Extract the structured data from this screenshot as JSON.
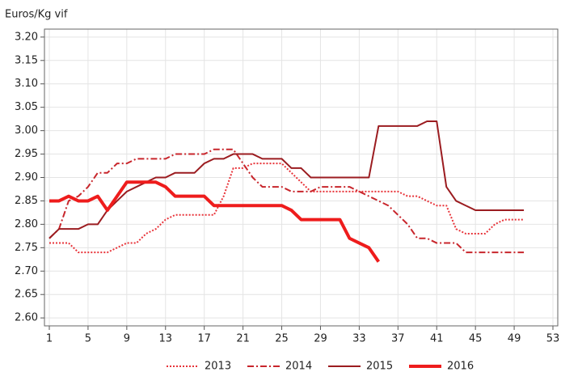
{
  "chart_data": {
    "type": "line",
    "ylabel": "Euros/Kg vif",
    "x": [
      1,
      2,
      3,
      4,
      5,
      6,
      7,
      8,
      9,
      10,
      11,
      12,
      13,
      14,
      15,
      16,
      17,
      18,
      19,
      20,
      21,
      22,
      23,
      24,
      25,
      26,
      27,
      28,
      29,
      30,
      31,
      32,
      33,
      34,
      35,
      36,
      37,
      38,
      39,
      40,
      41,
      42,
      43,
      44,
      45,
      46,
      47,
      48,
      49,
      50
    ],
    "xlim": [
      0.5,
      53.5
    ],
    "xticks": [
      1,
      5,
      9,
      13,
      17,
      21,
      25,
      29,
      33,
      37,
      41,
      45,
      49,
      53
    ],
    "ylim": [
      2.583,
      3.217
    ],
    "yticks": [
      {
        "value": 2.6,
        "label": "2.60"
      },
      {
        "value": 2.65,
        "label": "2.65"
      },
      {
        "value": 2.7,
        "label": "2.70"
      },
      {
        "value": 2.75,
        "label": "2.75"
      },
      {
        "value": 2.8,
        "label": "2.80"
      },
      {
        "value": 2.85,
        "label": "2.85"
      },
      {
        "value": 2.9,
        "label": "2.90"
      },
      {
        "value": 2.95,
        "label": "2.95"
      },
      {
        "value": 3.0,
        "label": "3.00"
      },
      {
        "value": 3.05,
        "label": "3.05"
      },
      {
        "value": 3.1,
        "label": "3.10"
      },
      {
        "value": 3.15,
        "label": "3.15"
      },
      {
        "value": 3.2,
        "label": "3.20"
      }
    ],
    "grid": true,
    "legend": "bottom",
    "series": [
      {
        "name": "2013",
        "color": "#e8343a",
        "line_style": "dotted",
        "values": [
          2.76,
          2.76,
          2.76,
          2.74,
          2.74,
          2.74,
          2.74,
          2.75,
          2.76,
          2.76,
          2.78,
          2.79,
          2.81,
          2.82,
          2.82,
          2.82,
          2.82,
          2.82,
          2.86,
          2.92,
          2.92,
          2.93,
          2.93,
          2.93,
          2.93,
          2.91,
          2.89,
          2.87,
          2.87,
          2.87,
          2.87,
          2.87,
          2.87,
          2.87,
          2.87,
          2.87,
          2.87,
          2.86,
          2.86,
          2.85,
          2.84,
          2.84,
          2.79,
          2.78,
          2.78,
          2.78,
          2.8,
          2.81,
          2.81,
          2.81
        ]
      },
      {
        "name": "2014",
        "color": "#c8262c",
        "line_style": "dashdot",
        "values": [
          2.77,
          2.79,
          2.85,
          2.86,
          2.88,
          2.91,
          2.91,
          2.93,
          2.93,
          2.94,
          2.94,
          2.94,
          2.94,
          2.95,
          2.95,
          2.95,
          2.95,
          2.96,
          2.96,
          2.96,
          2.93,
          2.9,
          2.88,
          2.88,
          2.88,
          2.87,
          2.87,
          2.87,
          2.88,
          2.88,
          2.88,
          2.88,
          2.87,
          2.86,
          2.85,
          2.84,
          2.82,
          2.8,
          2.77,
          2.77,
          2.76,
          2.76,
          2.76,
          2.74,
          2.74,
          2.74,
          2.74,
          2.74,
          2.74,
          2.74
        ]
      },
      {
        "name": "2015",
        "color": "#9b1c20",
        "line_style": "solid",
        "values": [
          2.77,
          2.79,
          2.79,
          2.79,
          2.8,
          2.8,
          2.83,
          2.85,
          2.87,
          2.88,
          2.89,
          2.9,
          2.9,
          2.91,
          2.91,
          2.91,
          2.93,
          2.94,
          2.94,
          2.95,
          2.95,
          2.95,
          2.94,
          2.94,
          2.94,
          2.92,
          2.92,
          2.9,
          2.9,
          2.9,
          2.9,
          2.9,
          2.9,
          2.9,
          3.01,
          3.01,
          3.01,
          3.01,
          3.01,
          3.02,
          3.02,
          2.88,
          2.85,
          2.84,
          2.83,
          2.83,
          2.83,
          2.83,
          2.83,
          2.83
        ]
      },
      {
        "name": "2016",
        "color": "#ee1c1c",
        "line_style": "thick",
        "values": [
          2.85,
          2.85,
          2.86,
          2.85,
          2.85,
          2.86,
          2.83,
          2.86,
          2.89,
          2.89,
          2.89,
          2.89,
          2.88,
          2.86,
          2.86,
          2.86,
          2.86,
          2.84,
          2.84,
          2.84,
          2.84,
          2.84,
          2.84,
          2.84,
          2.84,
          2.83,
          2.81,
          2.81,
          2.81,
          2.81,
          2.81,
          2.77,
          2.76,
          2.75,
          2.72,
          null,
          null,
          null,
          null,
          null,
          null,
          null,
          null,
          null,
          null,
          null,
          null,
          null,
          null,
          null
        ]
      }
    ]
  }
}
